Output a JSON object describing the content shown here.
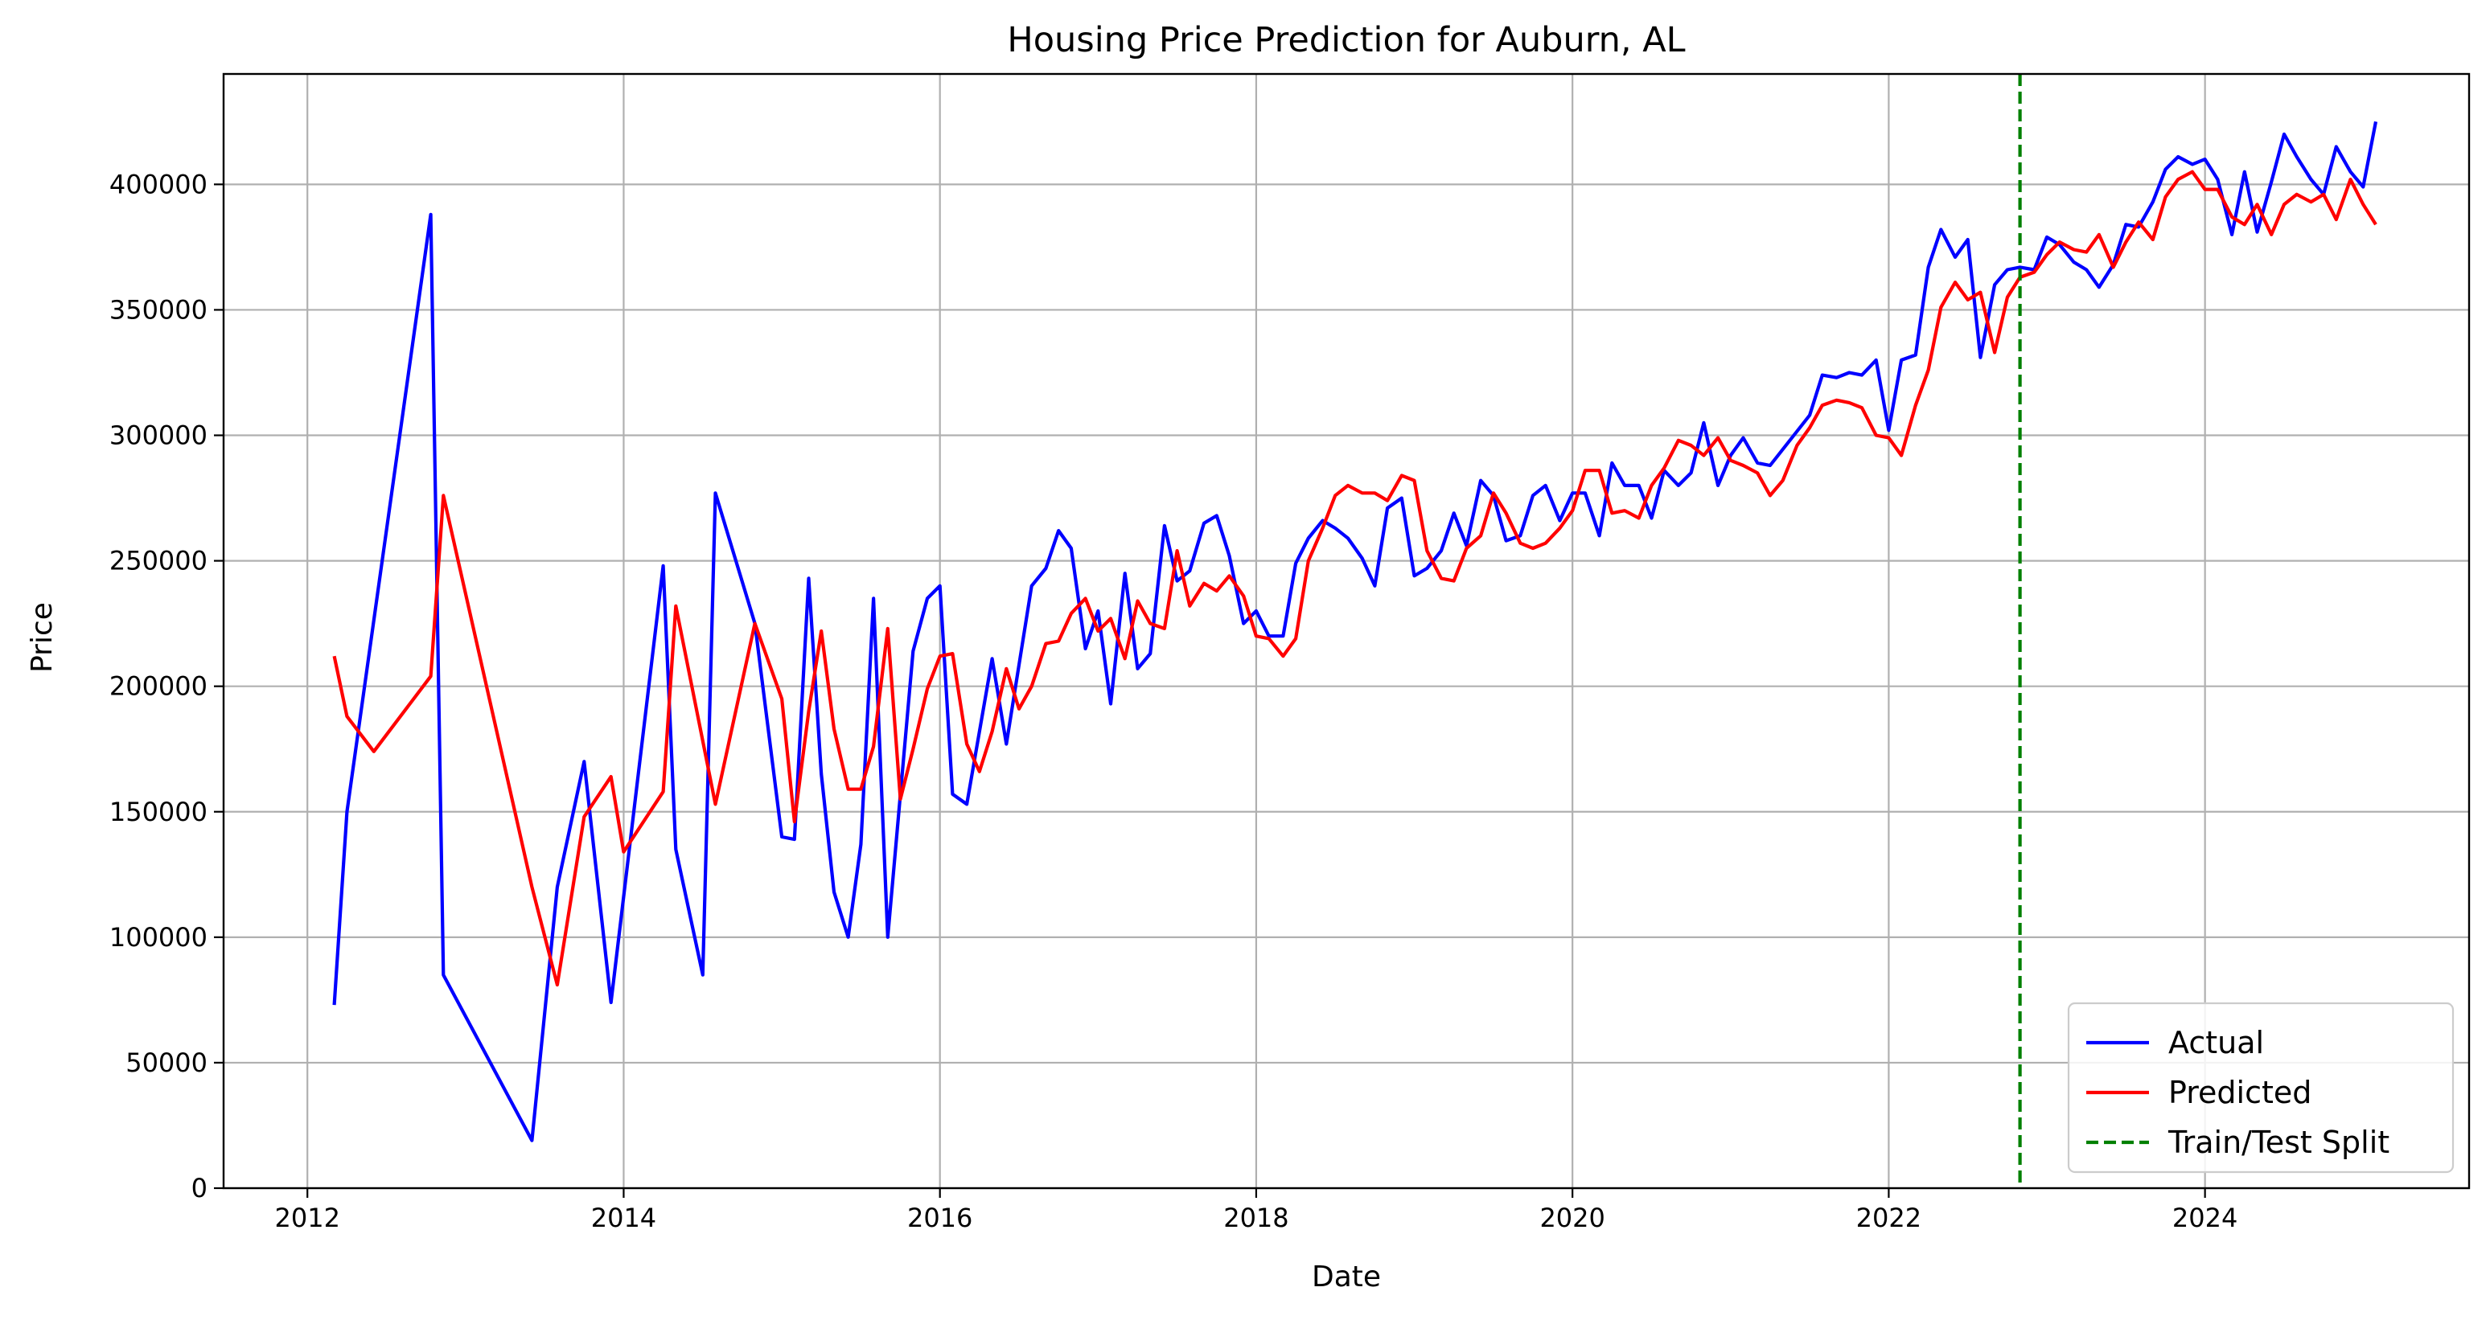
{
  "chart_data": {
    "type": "line",
    "title": "Housing Price Prediction for Auburn, AL",
    "xlabel": "Date",
    "ylabel": "Price",
    "xlim": [
      2011.47,
      2025.67
    ],
    "ylim": [
      0,
      444000
    ],
    "x_ticks": [
      2012,
      2014,
      2016,
      2018,
      2020,
      2022,
      2024
    ],
    "x_tick_labels": [
      "2012",
      "2014",
      "2016",
      "2018",
      "2020",
      "2022",
      "2024"
    ],
    "y_ticks": [
      0,
      50000,
      100000,
      150000,
      200000,
      250000,
      300000,
      350000,
      400000
    ],
    "y_tick_labels": [
      "0",
      "50000",
      "100000",
      "150000",
      "200000",
      "250000",
      "300000",
      "350000",
      "400000"
    ],
    "grid": true,
    "legend_position": "bottom-right",
    "series": [
      {
        "name": "Actual",
        "color": "#0000ff",
        "style": "solid",
        "points": [
          [
            2012.17,
            73000
          ],
          [
            2012.25,
            150000
          ],
          [
            2012.78,
            388000
          ],
          [
            2012.86,
            85000
          ],
          [
            2013.42,
            19000
          ],
          [
            2013.58,
            120000
          ],
          [
            2013.75,
            170000
          ],
          [
            2013.92,
            74000
          ],
          [
            2014.25,
            248000
          ],
          [
            2014.33,
            135000
          ],
          [
            2014.5,
            85000
          ],
          [
            2014.58,
            277000
          ],
          [
            2014.83,
            225000
          ],
          [
            2015.0,
            140000
          ],
          [
            2015.08,
            139000
          ],
          [
            2015.17,
            243000
          ],
          [
            2015.25,
            165000
          ],
          [
            2015.33,
            118000
          ],
          [
            2015.42,
            100000
          ],
          [
            2015.5,
            137000
          ],
          [
            2015.58,
            235000
          ],
          [
            2015.67,
            100000
          ],
          [
            2015.83,
            214000
          ],
          [
            2015.92,
            235000
          ],
          [
            2016.0,
            240000
          ],
          [
            2016.08,
            157000
          ],
          [
            2016.17,
            153000
          ],
          [
            2016.33,
            211000
          ],
          [
            2016.42,
            177000
          ],
          [
            2016.58,
            240000
          ],
          [
            2016.67,
            247000
          ],
          [
            2016.75,
            262000
          ],
          [
            2016.83,
            255000
          ],
          [
            2016.92,
            215000
          ],
          [
            2017.0,
            230000
          ],
          [
            2017.08,
            193000
          ],
          [
            2017.17,
            245000
          ],
          [
            2017.25,
            207000
          ],
          [
            2017.33,
            213000
          ],
          [
            2017.42,
            264000
          ],
          [
            2017.5,
            242000
          ],
          [
            2017.58,
            246000
          ],
          [
            2017.67,
            265000
          ],
          [
            2017.75,
            268000
          ],
          [
            2017.83,
            252000
          ],
          [
            2017.92,
            225000
          ],
          [
            2018.0,
            230000
          ],
          [
            2018.08,
            220000
          ],
          [
            2018.17,
            220000
          ],
          [
            2018.25,
            249000
          ],
          [
            2018.33,
            259000
          ],
          [
            2018.42,
            266000
          ],
          [
            2018.5,
            263000
          ],
          [
            2018.58,
            259000
          ],
          [
            2018.67,
            251000
          ],
          [
            2018.75,
            240000
          ],
          [
            2018.83,
            271000
          ],
          [
            2018.92,
            275000
          ],
          [
            2019.0,
            244000
          ],
          [
            2019.08,
            247000
          ],
          [
            2019.17,
            254000
          ],
          [
            2019.25,
            269000
          ],
          [
            2019.33,
            256000
          ],
          [
            2019.42,
            282000
          ],
          [
            2019.5,
            276000
          ],
          [
            2019.58,
            258000
          ],
          [
            2019.67,
            260000
          ],
          [
            2019.75,
            276000
          ],
          [
            2019.83,
            280000
          ],
          [
            2019.92,
            266000
          ],
          [
            2020.0,
            277000
          ],
          [
            2020.08,
            277000
          ],
          [
            2020.17,
            260000
          ],
          [
            2020.25,
            289000
          ],
          [
            2020.33,
            280000
          ],
          [
            2020.42,
            280000
          ],
          [
            2020.5,
            267000
          ],
          [
            2020.58,
            286000
          ],
          [
            2020.67,
            280000
          ],
          [
            2020.75,
            285000
          ],
          [
            2020.83,
            305000
          ],
          [
            2020.92,
            280000
          ],
          [
            2021.0,
            292000
          ],
          [
            2021.08,
            299000
          ],
          [
            2021.17,
            289000
          ],
          [
            2021.25,
            288000
          ],
          [
            2021.5,
            308000
          ],
          [
            2021.58,
            324000
          ],
          [
            2021.67,
            323000
          ],
          [
            2021.75,
            325000
          ],
          [
            2021.83,
            324000
          ],
          [
            2021.92,
            330000
          ],
          [
            2022.0,
            302000
          ],
          [
            2022.08,
            330000
          ],
          [
            2022.17,
            332000
          ],
          [
            2022.25,
            367000
          ],
          [
            2022.33,
            382000
          ],
          [
            2022.42,
            371000
          ],
          [
            2022.5,
            378000
          ],
          [
            2022.58,
            331000
          ],
          [
            2022.67,
            360000
          ],
          [
            2022.75,
            366000
          ],
          [
            2022.83,
            367000
          ],
          [
            2022.92,
            366000
          ],
          [
            2023.0,
            379000
          ],
          [
            2023.08,
            376000
          ],
          [
            2023.17,
            369000
          ],
          [
            2023.25,
            366000
          ],
          [
            2023.33,
            359000
          ],
          [
            2023.42,
            368000
          ],
          [
            2023.5,
            384000
          ],
          [
            2023.58,
            383000
          ],
          [
            2023.67,
            393000
          ],
          [
            2023.75,
            406000
          ],
          [
            2023.83,
            411000
          ],
          [
            2023.92,
            408000
          ],
          [
            2024.0,
            410000
          ],
          [
            2024.08,
            402000
          ],
          [
            2024.17,
            380000
          ],
          [
            2024.25,
            405000
          ],
          [
            2024.33,
            381000
          ],
          [
            2024.42,
            401000
          ],
          [
            2024.5,
            420000
          ],
          [
            2024.58,
            411000
          ],
          [
            2024.67,
            402000
          ],
          [
            2024.75,
            396000
          ],
          [
            2024.83,
            415000
          ],
          [
            2024.92,
            405000
          ],
          [
            2025.0,
            399000
          ],
          [
            2025.08,
            425000
          ]
        ]
      },
      {
        "name": "Predicted",
        "color": "#ff0000",
        "style": "solid",
        "points": [
          [
            2012.17,
            212000
          ],
          [
            2012.25,
            188000
          ],
          [
            2012.42,
            174000
          ],
          [
            2012.78,
            204000
          ],
          [
            2012.86,
            276000
          ],
          [
            2013.42,
            120000
          ],
          [
            2013.58,
            81000
          ],
          [
            2013.75,
            148000
          ],
          [
            2013.92,
            164000
          ],
          [
            2014.0,
            134000
          ],
          [
            2014.25,
            158000
          ],
          [
            2014.33,
            232000
          ],
          [
            2014.58,
            153000
          ],
          [
            2014.83,
            225000
          ],
          [
            2015.0,
            195000
          ],
          [
            2015.08,
            146000
          ],
          [
            2015.17,
            190000
          ],
          [
            2015.25,
            222000
          ],
          [
            2015.33,
            183000
          ],
          [
            2015.42,
            159000
          ],
          [
            2015.5,
            159000
          ],
          [
            2015.58,
            176000
          ],
          [
            2015.67,
            223000
          ],
          [
            2015.75,
            155000
          ],
          [
            2015.83,
            175000
          ],
          [
            2015.92,
            199000
          ],
          [
            2016.0,
            212000
          ],
          [
            2016.08,
            213000
          ],
          [
            2016.17,
            177000
          ],
          [
            2016.25,
            166000
          ],
          [
            2016.33,
            182000
          ],
          [
            2016.42,
            207000
          ],
          [
            2016.5,
            191000
          ],
          [
            2016.58,
            200000
          ],
          [
            2016.67,
            217000
          ],
          [
            2016.75,
            218000
          ],
          [
            2016.83,
            229000
          ],
          [
            2016.92,
            235000
          ],
          [
            2017.0,
            222000
          ],
          [
            2017.08,
            227000
          ],
          [
            2017.17,
            211000
          ],
          [
            2017.25,
            234000
          ],
          [
            2017.33,
            225000
          ],
          [
            2017.42,
            223000
          ],
          [
            2017.5,
            254000
          ],
          [
            2017.58,
            232000
          ],
          [
            2017.67,
            241000
          ],
          [
            2017.75,
            238000
          ],
          [
            2017.83,
            244000
          ],
          [
            2017.92,
            236000
          ],
          [
            2018.0,
            220000
          ],
          [
            2018.08,
            219000
          ],
          [
            2018.17,
            212000
          ],
          [
            2018.25,
            219000
          ],
          [
            2018.33,
            250000
          ],
          [
            2018.42,
            263000
          ],
          [
            2018.5,
            276000
          ],
          [
            2018.58,
            280000
          ],
          [
            2018.67,
            277000
          ],
          [
            2018.75,
            277000
          ],
          [
            2018.83,
            274000
          ],
          [
            2018.92,
            284000
          ],
          [
            2019.0,
            282000
          ],
          [
            2019.08,
            254000
          ],
          [
            2019.17,
            243000
          ],
          [
            2019.25,
            242000
          ],
          [
            2019.33,
            255000
          ],
          [
            2019.42,
            260000
          ],
          [
            2019.5,
            277000
          ],
          [
            2019.58,
            269000
          ],
          [
            2019.67,
            257000
          ],
          [
            2019.75,
            255000
          ],
          [
            2019.83,
            257000
          ],
          [
            2019.92,
            263000
          ],
          [
            2020.0,
            270000
          ],
          [
            2020.08,
            286000
          ],
          [
            2020.17,
            286000
          ],
          [
            2020.25,
            269000
          ],
          [
            2020.33,
            270000
          ],
          [
            2020.42,
            267000
          ],
          [
            2020.5,
            280000
          ],
          [
            2020.58,
            287000
          ],
          [
            2020.67,
            298000
          ],
          [
            2020.75,
            296000
          ],
          [
            2020.83,
            292000
          ],
          [
            2020.92,
            299000
          ],
          [
            2021.0,
            290000
          ],
          [
            2021.08,
            288000
          ],
          [
            2021.17,
            285000
          ],
          [
            2021.25,
            276000
          ],
          [
            2021.33,
            282000
          ],
          [
            2021.42,
            296000
          ],
          [
            2021.5,
            303000
          ],
          [
            2021.58,
            312000
          ],
          [
            2021.67,
            314000
          ],
          [
            2021.75,
            313000
          ],
          [
            2021.83,
            311000
          ],
          [
            2021.92,
            300000
          ],
          [
            2022.0,
            299000
          ],
          [
            2022.08,
            292000
          ],
          [
            2022.17,
            312000
          ],
          [
            2022.25,
            326000
          ],
          [
            2022.33,
            351000
          ],
          [
            2022.42,
            361000
          ],
          [
            2022.5,
            354000
          ],
          [
            2022.58,
            357000
          ],
          [
            2022.67,
            333000
          ],
          [
            2022.75,
            355000
          ],
          [
            2022.83,
            363000
          ],
          [
            2022.92,
            365000
          ],
          [
            2023.0,
            372000
          ],
          [
            2023.08,
            377000
          ],
          [
            2023.17,
            374000
          ],
          [
            2023.25,
            373000
          ],
          [
            2023.33,
            380000
          ],
          [
            2023.42,
            367000
          ],
          [
            2023.5,
            377000
          ],
          [
            2023.58,
            385000
          ],
          [
            2023.67,
            378000
          ],
          [
            2023.75,
            395000
          ],
          [
            2023.83,
            402000
          ],
          [
            2023.92,
            405000
          ],
          [
            2024.0,
            398000
          ],
          [
            2024.08,
            398000
          ],
          [
            2024.17,
            387000
          ],
          [
            2024.25,
            384000
          ],
          [
            2024.33,
            392000
          ],
          [
            2024.42,
            380000
          ],
          [
            2024.5,
            392000
          ],
          [
            2024.58,
            396000
          ],
          [
            2024.67,
            393000
          ],
          [
            2024.75,
            396000
          ],
          [
            2024.83,
            386000
          ],
          [
            2024.92,
            402000
          ],
          [
            2025.0,
            392000
          ],
          [
            2025.08,
            384000
          ]
        ]
      }
    ],
    "vertical_lines": [
      {
        "name": "Train/Test Split",
        "x": 2022.83,
        "color": "#008000",
        "style": "dashed"
      }
    ]
  }
}
